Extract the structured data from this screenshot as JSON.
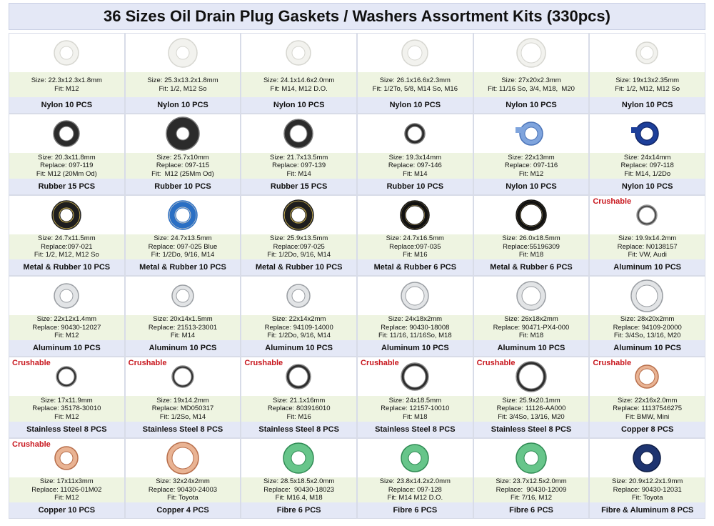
{
  "title": "36 Sizes Oil Drain Plug Gaskets / Washers Assortment Kits (330pcs)",
  "cells": [
    {
      "specs": [
        "Size: 22.3x12.3x1.8mm",
        "Fit: M12"
      ],
      "label": "Nylon 10 PCS"
    },
    {
      "specs": [
        "Size: 25.3x13.2x1.8mm",
        "Fit: 1/2, M12 So"
      ],
      "label": "Nylon 10 PCS"
    },
    {
      "specs": [
        "Size: 24.1x14.6x2.0mm",
        "Fit: M14, M12 D.O."
      ],
      "label": "Nylon 10 PCS"
    },
    {
      "specs": [
        "Size: 26.1x16.6x2.3mm",
        "Fit: 1/2To, 5/8, M14 So, M16"
      ],
      "label": "Nylon 10 PCS"
    },
    {
      "specs": [
        "Size: 27x20x2.3mm",
        "Fit: 11/16 So, 3/4, M18,  M20"
      ],
      "label": "Nylon 10 PCS"
    },
    {
      "specs": [
        "Size: 19x13x2.35mm",
        "Fit: 1/2, M12, M12 So"
      ],
      "label": "Nylon 10 PCS"
    },
    {
      "specs": [
        "Size: 20.3x11.8mm",
        "Replace: 097-119",
        "Fit: M12 (20Mm Od)"
      ],
      "label": "Rubber 15 PCS"
    },
    {
      "specs": [
        "Size: 25.7x10mm",
        "Replace: 097-115",
        "Fit:  M12 (25Mm Od)"
      ],
      "label": "Rubber 10 PCS"
    },
    {
      "specs": [
        "Size: 21.7x13.5mm",
        "Replace: 097-139",
        "Fit: M14"
      ],
      "label": "Rubber 15 PCS"
    },
    {
      "specs": [
        "Size: 19.3x14mm",
        "Replace: 097-146",
        "Fit: M14"
      ],
      "label": "Rubber 10 PCS"
    },
    {
      "specs": [
        "Size: 22x13mm",
        "Replace: 097-116",
        "Fit: M12"
      ],
      "label": "Nylon 10 PCS"
    },
    {
      "specs": [
        "Size: 24x14mm",
        "Replace: 097-118",
        "Fit: M14, 1/2Do"
      ],
      "label": "Nylon 10 PCS"
    },
    {
      "specs": [
        "Size: 24.7x11.5mm",
        "Replace:097-021",
        "Fit: 1/2, M12, M12 So"
      ],
      "label": "Metal & Rubber 10 PCS"
    },
    {
      "specs": [
        "Size: 24.7x13.5mm",
        "Replace: 097-025 Blue",
        "Fit: 1/2Do, 9/16, M14"
      ],
      "label": "Metal & Rubber 10 PCS"
    },
    {
      "specs": [
        "Size: 25.9x13.5mm",
        "Replace:097-025",
        "Fit: 1/2Do, 9/16, M14"
      ],
      "label": "Metal & Rubber 10 PCS"
    },
    {
      "specs": [
        "Size: 24.7x16.5mm",
        "Replace:097-035",
        "Fit: M16"
      ],
      "label": "Metal & Rubber 6 PCS"
    },
    {
      "specs": [
        "Size: 26.0x18.5mm",
        "Replace:55196309",
        "Fit: M18"
      ],
      "label": "Metal & Rubber 6 PCS"
    },
    {
      "badge": "Crushable",
      "specs": [
        "Size: 19.9x14.2mm",
        "Replace: N0138157",
        "Fit: VW, Audi"
      ],
      "label": "Aluminum 10 PCS"
    },
    {
      "specs": [
        "Size: 22x12x1.4mm",
        "Replace: 90430-12027",
        "Fit: M12"
      ],
      "label": "Aluminum 10 PCS"
    },
    {
      "specs": [
        "Size: 20x14x1.5mm",
        "Replace: 21513-23001",
        "Fit: M14"
      ],
      "label": "Aluminum 10 PCS"
    },
    {
      "specs": [
        "Size: 22x14x2mm",
        "Replace: 94109-14000",
        "Fit: 1/2Do, 9/16, M14"
      ],
      "label": "Aluminum 10 PCS"
    },
    {
      "specs": [
        "Size: 24x18x2mm",
        "Replace: 90430-18008",
        "Fit: 11/16, 11/16So, M18"
      ],
      "label": "Aluminum 10 PCS"
    },
    {
      "specs": [
        "Size: 26x18x2mm",
        "Replace: 90471-PX4-000",
        "Fit: M18"
      ],
      "label": "Aluminum 10 PCS"
    },
    {
      "specs": [
        "Size: 28x20x2mm",
        "Replace: 94109-20000",
        "Fit: 3/4So, 13/16, M20"
      ],
      "label": "Aluminum 10 PCS"
    },
    {
      "badge": "Crushable",
      "specs": [
        "Size: 17x11.9mm",
        "Replace: 35178-30010",
        "Fit: M12"
      ],
      "label": "Stainless Steel 8 PCS"
    },
    {
      "badge": "Crushable",
      "specs": [
        "Size: 19x14.2mm",
        "Replace: MD050317",
        "Fit: 1/2So, M14"
      ],
      "label": "Stainless Steel 8 PCS"
    },
    {
      "badge": "Crushable",
      "specs": [
        "Size: 21.1x16mm",
        "Replace: 803916010",
        "Fit: M16"
      ],
      "label": "Stainless Steel 8 PCS"
    },
    {
      "badge": "Crushable",
      "specs": [
        "Size: 24x18.5mm",
        "Replace: 12157-10010",
        "Fit: M18"
      ],
      "label": "Stainless Steel 8 PCS"
    },
    {
      "badge": "Crushable",
      "specs": [
        "Size: 25.9x20.1mm",
        "Replace: 11126-AA000",
        "Fit: 3/4So, 13/16, M20"
      ],
      "label": "Stainless Steel 8 PCS"
    },
    {
      "badge": "Crushable",
      "specs": [
        "Size: 22x16x2.0mm",
        "Replace: 11137546275",
        "Fit: BMW, Mini"
      ],
      "label": "Copper 8 PCS"
    },
    {
      "badge": "Crushable",
      "specs": [
        "Size: 17x11x3mm",
        "Replace: 11026-01M02",
        "Fit: M12"
      ],
      "label": "Copper 10 PCS"
    },
    {
      "specs": [
        "Size: 32x24x2mm",
        "Replace: 90430-24003",
        "Fit: Toyota"
      ],
      "label": "Copper 4 PCS"
    },
    {
      "specs": [
        "Size: 28.5x18.5x2.0mm",
        "Replace:  90430-18023",
        "Fit: M16.4, M18"
      ],
      "label": "Fibre 6 PCS"
    },
    {
      "specs": [
        "Size: 23.8x14.2x2.0mm",
        "Replace: 097-128",
        "Fit: M14 M12 D.O."
      ],
      "label": "Fibre 6 PCS"
    },
    {
      "specs": [
        "Size: 23.7x12.5x2.0mm",
        "Replace:  90430-12009",
        "Fit: 7/16, M12"
      ],
      "label": "Fibre 6 PCS"
    },
    {
      "specs": [
        "Size: 20.9x12.2x1.9mm",
        "Replace: 90430-12031",
        "Fit: Toyota"
      ],
      "label": "Fibre & Aluminum 8 PCS"
    }
  ]
}
